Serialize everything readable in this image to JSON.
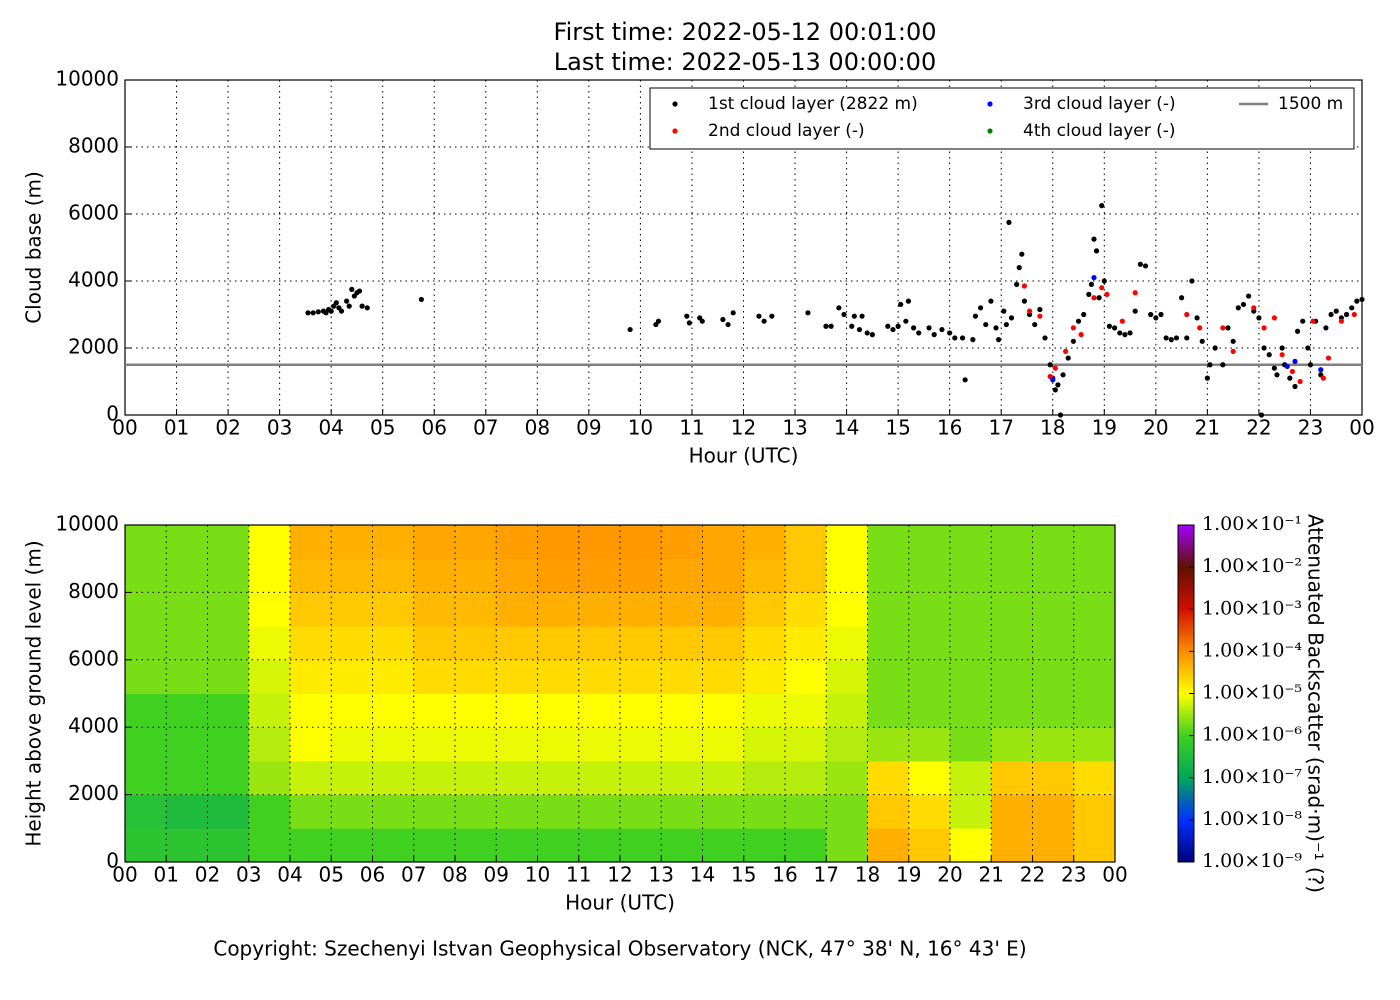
{
  "title": [
    "First time: 2022-05-12 00:01:00",
    "Last time: 2022-05-13 00:00:00"
  ],
  "footer": "Copyright: Szechenyi Istvan Geophysical Observatory (NCK, 47° 38' N, 16° 43' E)",
  "chart_data": [
    {
      "type": "scatter",
      "xlabel": "Hour (UTC)",
      "ylabel": "Cloud base (m)",
      "xlim": [
        0,
        24
      ],
      "ylim": [
        0,
        10000
      ],
      "yticks": [
        0,
        2000,
        4000,
        6000,
        8000,
        10000
      ],
      "xticks": [
        {
          "value": 0,
          "label": "00"
        },
        {
          "value": 1,
          "label": "01"
        },
        {
          "value": 2,
          "label": "02"
        },
        {
          "value": 3,
          "label": "03"
        },
        {
          "value": 4,
          "label": "04"
        },
        {
          "value": 5,
          "label": "05"
        },
        {
          "value": 6,
          "label": "06"
        },
        {
          "value": 7,
          "label": "07"
        },
        {
          "value": 8,
          "label": "08"
        },
        {
          "value": 9,
          "label": "09"
        },
        {
          "value": 10,
          "label": "10"
        },
        {
          "value": 11,
          "label": "11"
        },
        {
          "value": 12,
          "label": "12"
        },
        {
          "value": 13,
          "label": "13"
        },
        {
          "value": 14,
          "label": "14"
        },
        {
          "value": 15,
          "label": "15"
        },
        {
          "value": 16,
          "label": "16"
        },
        {
          "value": 17,
          "label": "17"
        },
        {
          "value": 18,
          "label": "18"
        },
        {
          "value": 19,
          "label": "19"
        },
        {
          "value": 20,
          "label": "20"
        },
        {
          "value": 21,
          "label": "21"
        },
        {
          "value": 22,
          "label": "22"
        },
        {
          "value": 23,
          "label": "23"
        },
        {
          "value": 24,
          "label": "00"
        }
      ],
      "grid": true,
      "legend": "upper right",
      "series": [
        {
          "name": "1st cloud layer (2822 m)",
          "color": "#000000",
          "x": [
            3.55,
            3.65,
            3.75,
            3.85,
            3.9,
            3.95,
            4.0,
            4.05,
            4.1,
            4.15,
            4.2,
            4.3,
            4.35,
            4.4,
            4.45,
            4.5,
            4.55,
            4.6,
            4.7,
            5.75,
            9.8,
            10.3,
            10.35,
            10.9,
            10.95,
            11.15,
            11.2,
            11.6,
            11.7,
            11.8,
            12.3,
            12.4,
            12.55,
            13.25,
            13.6,
            13.7,
            13.85,
            13.95,
            14.1,
            14.15,
            14.25,
            14.3,
            14.4,
            14.5,
            14.8,
            14.9,
            15.0,
            15.05,
            15.15,
            15.2,
            15.3,
            15.4,
            15.6,
            15.7,
            15.85,
            16.0,
            16.1,
            16.25,
            16.3,
            16.45,
            16.5,
            16.6,
            16.7,
            16.8,
            16.9,
            16.95,
            17.05,
            17.15,
            17.1,
            17.2,
            17.3,
            17.35,
            17.4,
            17.45,
            17.55,
            17.65,
            17.75,
            17.85,
            17.95,
            18.0,
            18.05,
            18.1,
            18.15,
            18.2,
            18.3,
            18.4,
            18.5,
            18.6,
            18.7,
            18.75,
            18.8,
            18.85,
            18.9,
            18.95,
            19.0,
            19.1,
            19.2,
            19.3,
            19.4,
            19.5,
            19.6,
            19.7,
            19.8,
            19.9,
            20.0,
            20.1,
            20.2,
            20.3,
            20.4,
            20.5,
            20.6,
            20.7,
            20.8,
            20.9,
            21.0,
            21.05,
            21.15,
            21.3,
            21.4,
            21.5,
            21.6,
            21.7,
            21.8,
            21.9,
            22.0,
            22.05,
            22.1,
            22.2,
            22.3,
            22.35,
            22.45,
            22.5,
            22.6,
            22.7,
            22.75,
            22.85,
            22.95,
            23.0,
            23.1,
            23.2,
            23.3,
            23.4,
            23.5,
            23.6,
            23.7,
            23.8,
            23.9,
            24.0
          ],
          "values": [
            3050,
            3050,
            3080,
            3100,
            3050,
            3150,
            3100,
            3250,
            3350,
            3200,
            3100,
            3400,
            3250,
            3750,
            3550,
            3650,
            3700,
            3250,
            3200,
            3450,
            2550,
            2700,
            2800,
            2950,
            2750,
            2900,
            2800,
            2850,
            2700,
            3050,
            2950,
            2800,
            2950,
            3050,
            2650,
            2650,
            3200,
            3000,
            2650,
            2950,
            2550,
            2950,
            2450,
            2400,
            2650,
            2550,
            2650,
            3300,
            2800,
            3400,
            2600,
            2450,
            2600,
            2400,
            2550,
            2450,
            2300,
            2300,
            1050,
            2250,
            2950,
            3200,
            2700,
            3400,
            2600,
            2250,
            3100,
            5750,
            2700,
            2900,
            3900,
            4400,
            4800,
            3400,
            3000,
            2700,
            3150,
            2300,
            1500,
            1100,
            750,
            900,
            0,
            1200,
            1700,
            2200,
            2800,
            3000,
            3600,
            3900,
            5250,
            4900,
            3500,
            6250,
            4000,
            2650,
            2600,
            2450,
            2400,
            2450,
            3100,
            4500,
            4450,
            3000,
            2900,
            3000,
            2300,
            2250,
            2300,
            3500,
            2300,
            4000,
            2900,
            2200,
            1100,
            1500,
            2000,
            1500,
            2600,
            2200,
            3200,
            3300,
            3550,
            3100,
            2900,
            0,
            2000,
            1800,
            1400,
            1200,
            2000,
            1500,
            1100,
            850,
            2500,
            2800,
            2000,
            1500,
            2800,
            1200,
            2600,
            3000,
            3100,
            2900,
            3000,
            3200,
            3400,
            3450
          ]
        },
        {
          "name": "2nd cloud layer (-)",
          "color": "#ff0000",
          "x": [
            17.45,
            17.55,
            17.75,
            17.95,
            18.05,
            18.25,
            18.4,
            18.55,
            18.8,
            18.95,
            19.05,
            19.35,
            19.6,
            20.6,
            20.85,
            21.3,
            21.5,
            21.9,
            22.1,
            22.3,
            22.45,
            22.65,
            22.8,
            23.05,
            23.25,
            23.35,
            23.6,
            23.85
          ],
          "values": [
            3850,
            3100,
            2950,
            1150,
            1400,
            1900,
            2600,
            2400,
            3500,
            3800,
            3600,
            2800,
            3650,
            3000,
            2600,
            2600,
            1900,
            3200,
            2600,
            2900,
            1800,
            1300,
            1000,
            2800,
            1100,
            1700,
            2800,
            3000
          ]
        },
        {
          "name": "3rd cloud layer (-)",
          "color": "#0000ff",
          "x": [
            18.0,
            18.8,
            22.55,
            22.7,
            23.2
          ],
          "values": [
            1050,
            4100,
            1450,
            1600,
            1350
          ]
        },
        {
          "name": "4th cloud layer (-)",
          "color": "#008000",
          "x": [],
          "values": []
        }
      ],
      "hlines": [
        {
          "name": "1500 m",
          "value": 1500,
          "color": "#808080"
        }
      ]
    },
    {
      "type": "heatmap",
      "xlabel": "Hour (UTC)",
      "ylabel": "Height above ground level (m)",
      "xlim": [
        0,
        24
      ],
      "ylim": [
        0,
        10000
      ],
      "yticks": [
        0,
        2000,
        4000,
        6000,
        8000,
        10000
      ],
      "xticks": [
        {
          "value": 0,
          "label": "00"
        },
        {
          "value": 1,
          "label": "01"
        },
        {
          "value": 2,
          "label": "02"
        },
        {
          "value": 3,
          "label": "03"
        },
        {
          "value": 4,
          "label": "04"
        },
        {
          "value": 5,
          "label": "05"
        },
        {
          "value": 6,
          "label": "06"
        },
        {
          "value": 7,
          "label": "07"
        },
        {
          "value": 8,
          "label": "08"
        },
        {
          "value": 9,
          "label": "09"
        },
        {
          "value": 10,
          "label": "10"
        },
        {
          "value": 11,
          "label": "11"
        },
        {
          "value": 12,
          "label": "12"
        },
        {
          "value": 13,
          "label": "13"
        },
        {
          "value": 14,
          "label": "14"
        },
        {
          "value": 15,
          "label": "15"
        },
        {
          "value": 16,
          "label": "16"
        },
        {
          "value": 17,
          "label": "17"
        },
        {
          "value": 18,
          "label": "18"
        },
        {
          "value": 19,
          "label": "19"
        },
        {
          "value": 20,
          "label": "20"
        },
        {
          "value": 21,
          "label": "21"
        },
        {
          "value": 22,
          "label": "22"
        },
        {
          "value": 23,
          "label": "23"
        },
        {
          "value": 24,
          "label": "00"
        }
      ],
      "grid": true,
      "xbins": [
        0,
        1,
        2,
        3,
        4,
        5,
        6,
        7,
        8,
        9,
        10,
        11,
        12,
        13,
        14,
        15,
        16,
        17,
        18,
        19,
        20,
        21,
        22,
        23,
        24
      ],
      "ybins": [
        0,
        1000,
        2000,
        3000,
        4000,
        5000,
        6000,
        7000,
        8000,
        9000,
        10000
      ],
      "z": [
        [
          5e-07,
          5e-07,
          5e-07,
          1e-06,
          1e-06,
          1e-06,
          1e-06,
          1e-06,
          1e-06,
          1e-06,
          1e-06,
          1e-06,
          1e-06,
          1e-06,
          1e-06,
          1e-06,
          1e-06,
          2e-06,
          5e-05,
          3e-05,
          1e-05,
          5e-05,
          5e-05,
          3e-05
        ],
        [
          4e-07,
          3e-07,
          3e-07,
          1e-06,
          2e-06,
          2e-06,
          2e-06,
          2e-06,
          2e-06,
          2e-06,
          2e-06,
          2e-06,
          2e-06,
          2e-06,
          2e-06,
          2e-06,
          2e-06,
          2e-06,
          3e-05,
          2e-05,
          5e-06,
          5e-05,
          5e-05,
          3e-05
        ],
        [
          1e-06,
          1e-06,
          1e-06,
          3e-06,
          5e-06,
          5e-06,
          5e-06,
          5e-06,
          5e-06,
          5e-06,
          5e-06,
          5e-06,
          5e-06,
          5e-06,
          5e-06,
          4e-06,
          4e-06,
          3e-06,
          2e-05,
          1e-05,
          5e-06,
          3e-05,
          3e-05,
          2e-05
        ],
        [
          1e-06,
          1e-06,
          1e-06,
          4e-06,
          1e-05,
          8e-06,
          8e-06,
          8e-06,
          8e-06,
          8e-06,
          8e-06,
          8e-06,
          8e-06,
          8e-06,
          8e-06,
          6e-06,
          6e-06,
          4e-06,
          3e-06,
          3e-06,
          2e-06,
          3e-06,
          3e-06,
          3e-06
        ],
        [
          1e-06,
          1e-06,
          1e-06,
          5e-06,
          1e-05,
          1e-05,
          1e-05,
          1e-05,
          1e-05,
          1e-05,
          1e-05,
          1e-05,
          1e-05,
          1e-05,
          1e-05,
          8e-06,
          8e-06,
          5e-06,
          2e-06,
          2e-06,
          2e-06,
          2e-06,
          2e-06,
          2e-06
        ],
        [
          2e-06,
          2e-06,
          2e-06,
          6e-06,
          1.5e-05,
          1.5e-05,
          1.5e-05,
          2e-05,
          2e-05,
          2e-05,
          2e-05,
          2e-05,
          2e-05,
          2e-05,
          2e-05,
          1.5e-05,
          1e-05,
          6e-06,
          2e-06,
          2e-06,
          2e-06,
          2e-06,
          2e-06,
          2e-06
        ],
        [
          2e-06,
          2e-06,
          2e-06,
          8e-06,
          2e-05,
          2e-05,
          2e-05,
          3e-05,
          3e-05,
          3e-05,
          3e-05,
          3e-05,
          3e-05,
          3e-05,
          3e-05,
          2e-05,
          1.5e-05,
          8e-06,
          2e-06,
          2e-06,
          2e-06,
          2e-06,
          2e-06,
          2e-06
        ],
        [
          2e-06,
          2e-06,
          2e-06,
          1e-05,
          3e-05,
          3e-05,
          3e-05,
          4e-05,
          4e-05,
          5e-05,
          5e-05,
          5e-05,
          5e-05,
          5e-05,
          5e-05,
          3e-05,
          2e-05,
          1e-05,
          2e-06,
          2e-06,
          2e-06,
          2e-06,
          2e-06,
          2e-06
        ],
        [
          2e-06,
          2e-06,
          2e-06,
          1e-05,
          4e-05,
          4e-05,
          4e-05,
          5e-05,
          5e-05,
          6e-05,
          7e-05,
          7e-05,
          7e-05,
          6e-05,
          6e-05,
          4e-05,
          3e-05,
          1e-05,
          2e-06,
          2e-06,
          2e-06,
          2e-06,
          2e-06,
          2e-06
        ],
        [
          2e-06,
          2e-06,
          2e-06,
          1e-05,
          5e-05,
          5e-05,
          5e-05,
          6e-05,
          6e-05,
          7e-05,
          8e-05,
          8e-05,
          8e-05,
          7e-05,
          6e-05,
          5e-05,
          3e-05,
          1e-05,
          2e-06,
          2e-06,
          2e-06,
          2e-06,
          2e-06,
          2e-06
        ]
      ],
      "colorbar": {
        "label": "Attenuated Backscatter (srad·m)⁻¹ (?)",
        "scale": "log",
        "lim": [
          1e-09,
          0.1
        ],
        "ticks": [
          {
            "value": 1e-09,
            "label": "1.00×10⁻⁹"
          },
          {
            "value": 1e-08,
            "label": "1.00×10⁻⁸"
          },
          {
            "value": 1e-07,
            "label": "1.00×10⁻⁷"
          },
          {
            "value": 1e-06,
            "label": "1.00×10⁻⁶"
          },
          {
            "value": 1e-05,
            "label": "1.00×10⁻⁵"
          },
          {
            "value": 0.0001,
            "label": "1.00×10⁻⁴"
          },
          {
            "value": 0.001,
            "label": "1.00×10⁻³"
          },
          {
            "value": 0.01,
            "label": "1.00×10⁻²"
          },
          {
            "value": 0.1,
            "label": "1.00×10⁻¹"
          }
        ],
        "colormap": [
          "#00007a",
          "#0030ff",
          "#00a858",
          "#40d020",
          "#ffff00",
          "#ff8c00",
          "#d01000",
          "#601000",
          "#a000ff"
        ]
      }
    }
  ]
}
